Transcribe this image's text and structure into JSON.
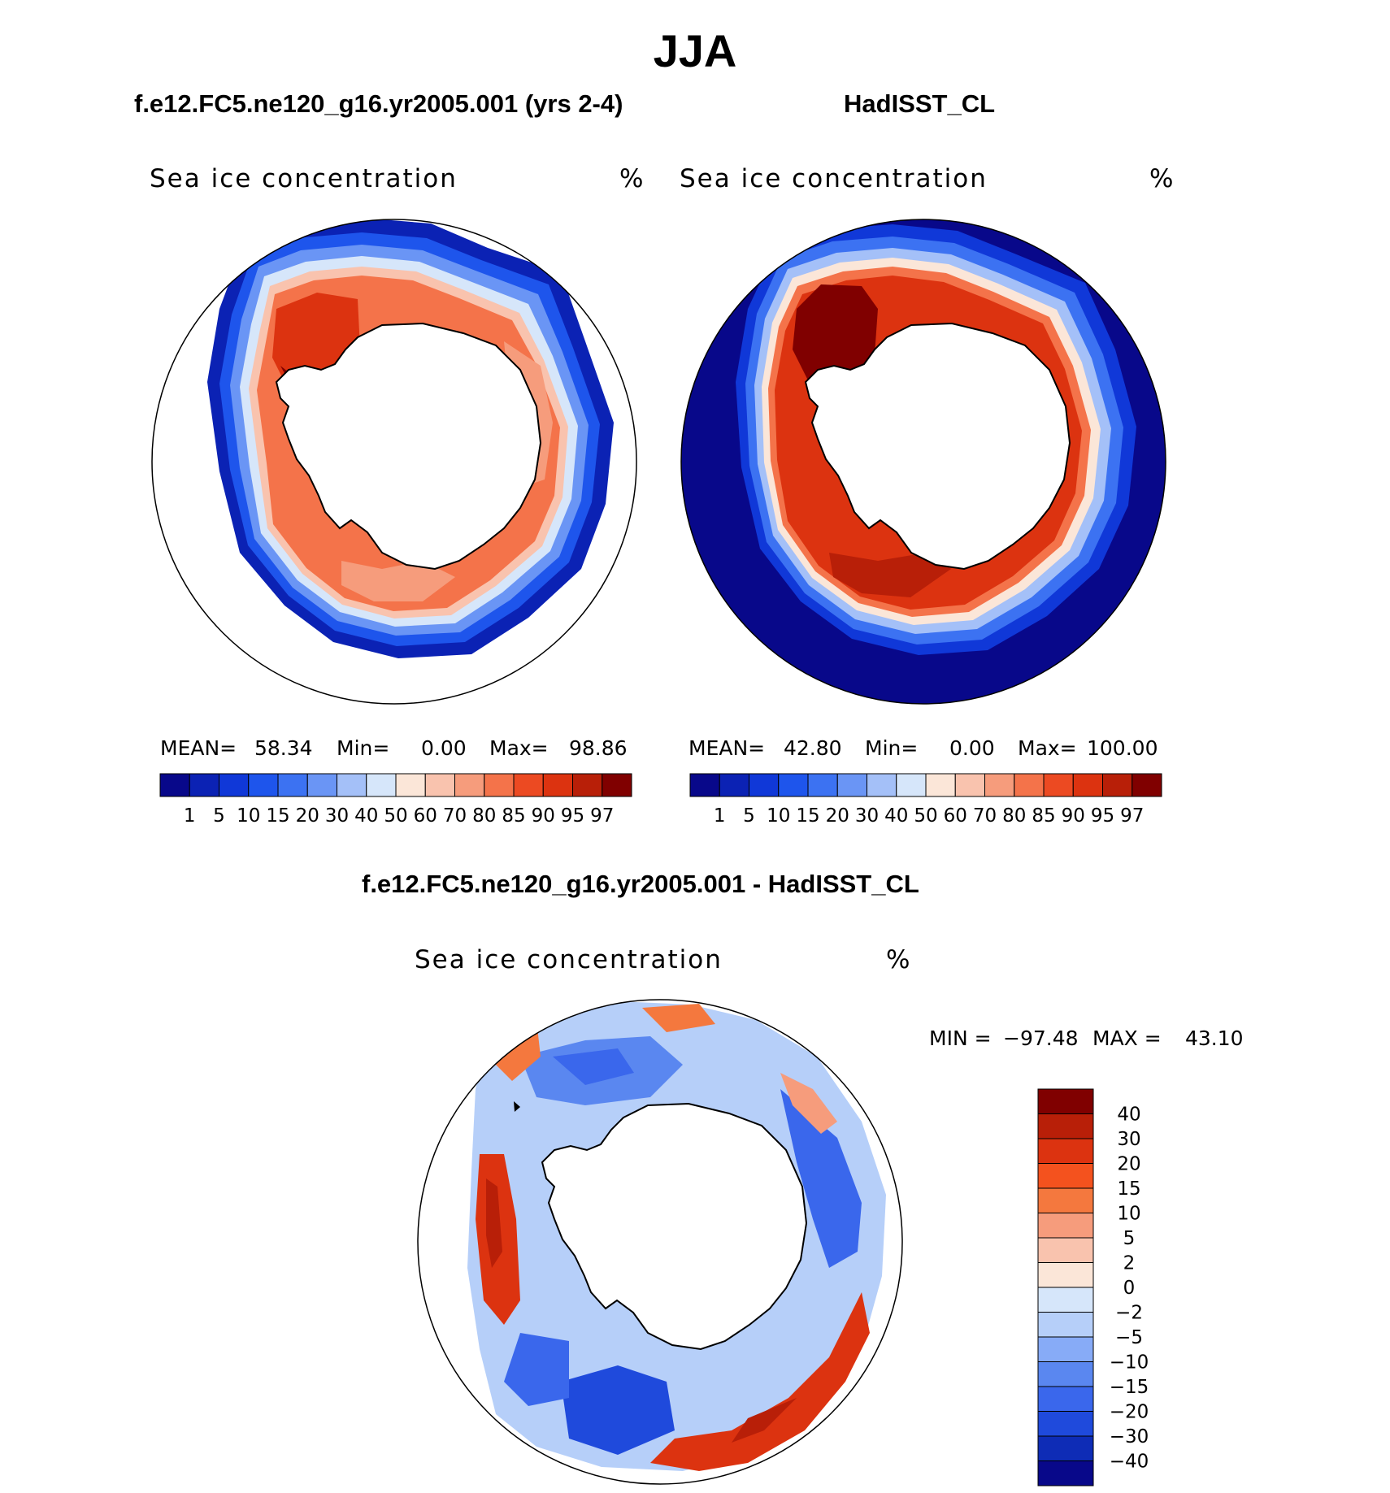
{
  "figure": {
    "title": "JJA",
    "panels": [
      {
        "title": "f.e12.FC5.ne120_g16.yr2005.001 (yrs 2-4)",
        "variable": "Sea ice concentration",
        "units": "%",
        "stats": {
          "mean_label": "MEAN=",
          "mean": "58.34",
          "min_label": "Min=",
          "min": "0.00",
          "max_label": "Max=",
          "max": "98.86"
        }
      },
      {
        "title": "HadISST_CL",
        "variable": "Sea ice concentration",
        "units": "%",
        "stats": {
          "mean_label": "MEAN=",
          "mean": "42.80",
          "min_label": "Min=",
          "min": "0.00",
          "max_label": "Max=",
          "max": "100.00"
        }
      },
      {
        "title": "f.e12.FC5.ne120_g16.yr2005.001 - HadISST_CL",
        "variable": "Sea ice concentration",
        "units": "%",
        "stats": {
          "min_label": "MIN =",
          "min": "−97.48",
          "max_label": "MAX =",
          "max": "43.10"
        }
      }
    ]
  },
  "colorbars": {
    "concentration": {
      "levels": [
        "1",
        "5",
        "10",
        "15",
        "20",
        "30",
        "40",
        "50",
        "60",
        "70",
        "80",
        "85",
        "90",
        "95",
        "97"
      ],
      "colors": [
        "#08088a",
        "#0b22b4",
        "#1038d8",
        "#1e55ec",
        "#3c72f2",
        "#6a95f5",
        "#a4c0f8",
        "#d6e6fa",
        "#fbe6d8",
        "#f9c3ae",
        "#f69c7c",
        "#f4734a",
        "#ec4a22",
        "#dc3310",
        "#b81f08",
        "#800000"
      ]
    },
    "difference": {
      "levels": [
        "40",
        "30",
        "20",
        "15",
        "10",
        "5",
        "2",
        "0",
        "−2",
        "−5",
        "−10",
        "−15",
        "−20",
        "−30",
        "−40"
      ],
      "colors": [
        "#800000",
        "#b81f08",
        "#dc3310",
        "#f4521e",
        "#f4783e",
        "#f69c7c",
        "#f9c3ae",
        "#fbe6d8",
        "#d6e6fa",
        "#b6cff9",
        "#87abf7",
        "#5a87f0",
        "#3a67ec",
        "#1f4adc",
        "#0e2cb6",
        "#08088a"
      ]
    }
  }
}
